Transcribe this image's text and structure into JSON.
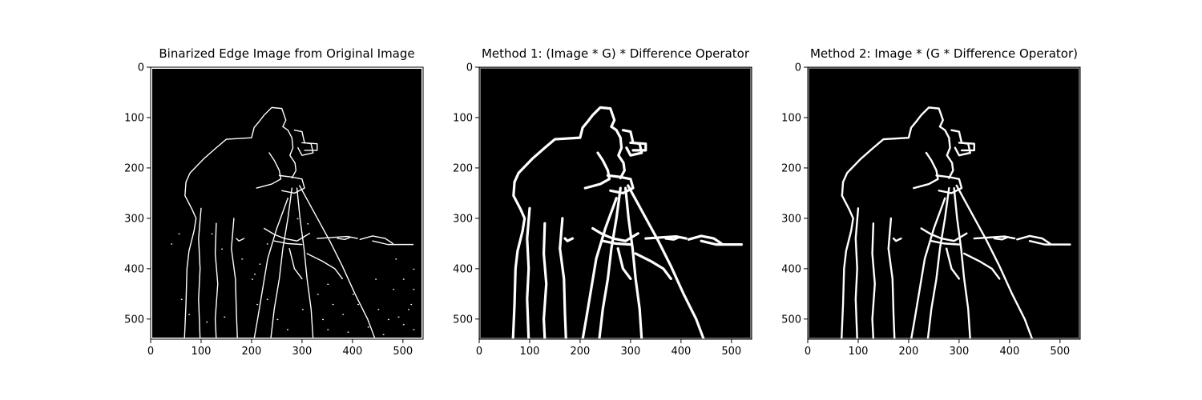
{
  "figure": {
    "panels": [
      {
        "title": "Binarized Edge Image from Original Image",
        "xticks": [
          0,
          100,
          200,
          300,
          400,
          500
        ],
        "yticks": [
          0,
          100,
          200,
          300,
          400,
          500
        ],
        "xlim": [
          0,
          540
        ],
        "ylim": [
          540,
          0
        ],
        "style": "thin-noisy"
      },
      {
        "title": "Method 1: (Image * G) * Difference Operator",
        "xticks": [
          0,
          100,
          200,
          300,
          400,
          500
        ],
        "yticks": [
          0,
          100,
          200,
          300,
          400,
          500
        ],
        "xlim": [
          0,
          540
        ],
        "ylim": [
          540,
          0
        ],
        "style": "thick-smooth"
      },
      {
        "title": "Method 2: Image * (G * Difference Operator)",
        "xticks": [
          0,
          100,
          200,
          300,
          400,
          500
        ],
        "yticks": [
          0,
          100,
          200,
          300,
          400,
          500
        ],
        "xlim": [
          0,
          540
        ],
        "ylim": [
          540,
          0
        ],
        "style": "medium-smooth"
      }
    ],
    "colors": {
      "background": "#000000",
      "edges": "#ffffff",
      "axes": "#000000"
    }
  }
}
